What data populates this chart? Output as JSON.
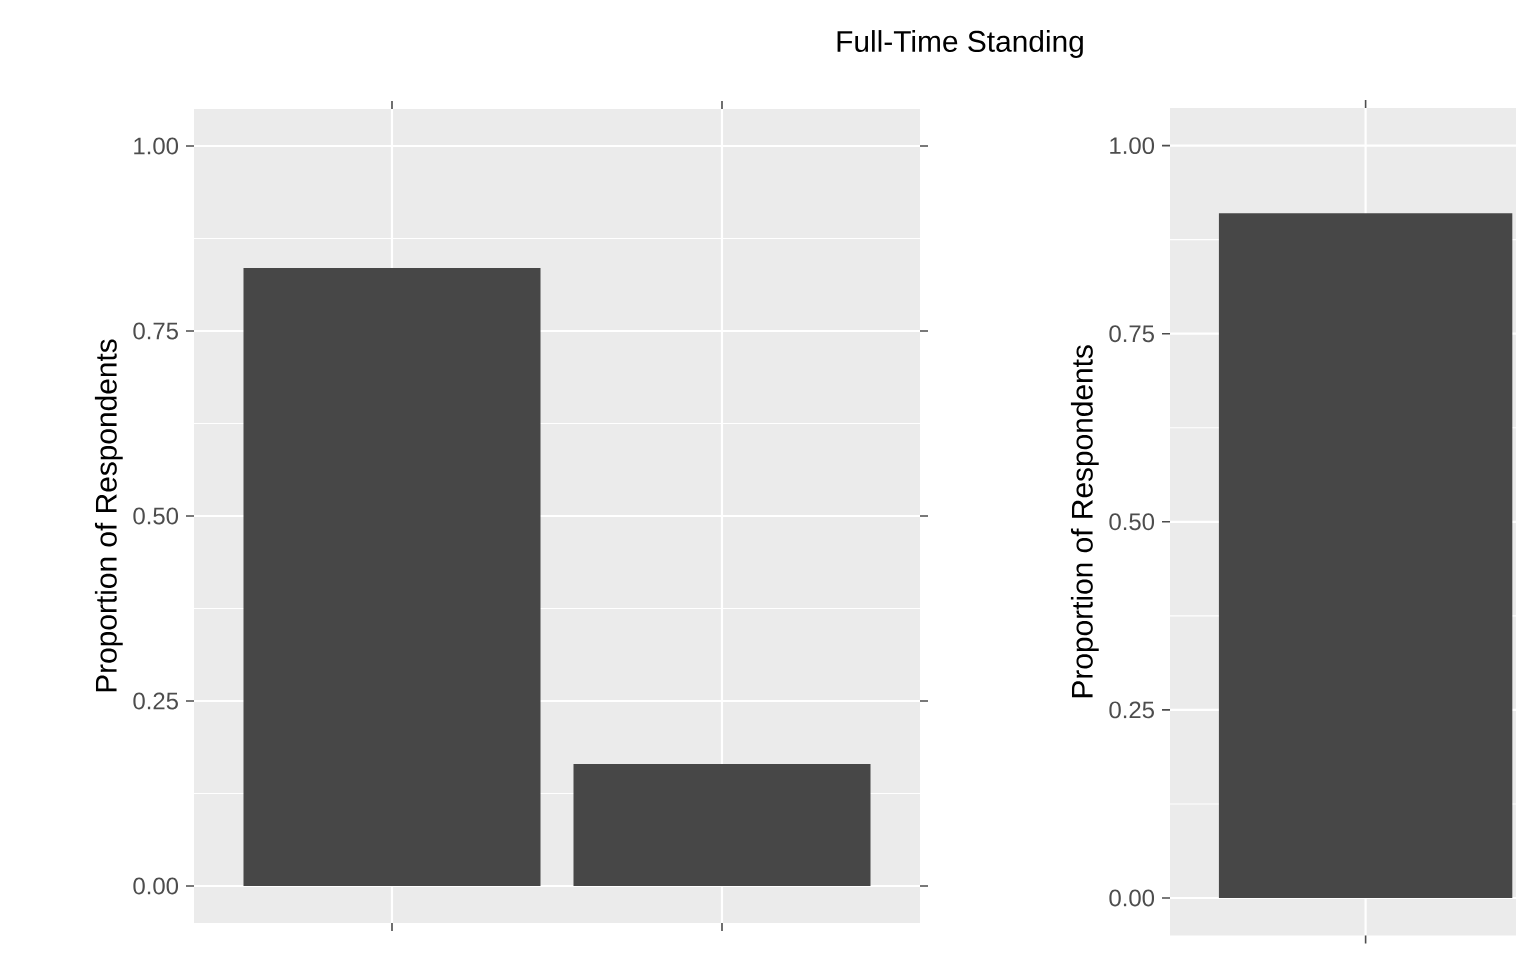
{
  "chart_data": [
    {
      "type": "bar",
      "title": "Full-Time Standing",
      "ylabel": "Proportion of Respondents",
      "categories": [
        null,
        null
      ],
      "values": [
        0.835,
        0.165
      ],
      "color": "#474747",
      "ylim": [
        -0.05,
        1.05
      ],
      "yticks": [
        {
          "value": 0,
          "label": "0.00"
        },
        {
          "value": 0.25,
          "label": "0.25"
        },
        {
          "value": 0.5,
          "label": "0.50"
        },
        {
          "value": 0.75,
          "label": "0.75"
        },
        {
          "value": 1,
          "label": "1.00"
        }
      ],
      "grid": true
    },
    {
      "type": "bar",
      "ylabel": "Proportion of Respondents",
      "categories": [
        null
      ],
      "values": [
        0.91
      ],
      "color": "#474747",
      "ylim": [
        -0.05,
        1.05
      ],
      "yticks": [
        {
          "value": 0,
          "label": "0.00"
        },
        {
          "value": 0.25,
          "label": "0.25"
        },
        {
          "value": 0.5,
          "label": "0.50"
        },
        {
          "value": 0.75,
          "label": "0.75"
        },
        {
          "value": 1,
          "label": "1.00"
        }
      ],
      "grid": true
    }
  ]
}
